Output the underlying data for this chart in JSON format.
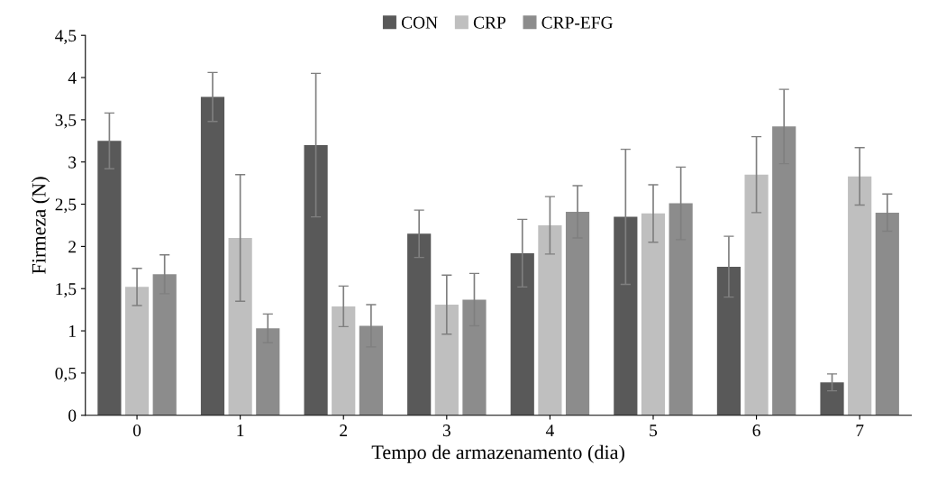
{
  "chart_data": {
    "type": "bar",
    "xlabel": "Tempo de armazenamento (dia)",
    "ylabel": "Firmeza (N)",
    "categories": [
      "0",
      "1",
      "2",
      "3",
      "4",
      "5",
      "6",
      "7"
    ],
    "series": [
      {
        "name": "CON",
        "color": "#595959",
        "values": [
          3.25,
          3.77,
          3.2,
          2.15,
          1.92,
          2.35,
          1.76,
          0.39
        ],
        "errors": [
          0.33,
          0.29,
          0.85,
          0.28,
          0.4,
          0.8,
          0.36,
          0.1
        ]
      },
      {
        "name": "CRP",
        "color": "#bfbfbf",
        "values": [
          1.52,
          2.1,
          1.29,
          1.31,
          2.25,
          2.39,
          2.85,
          2.83
        ],
        "errors": [
          0.22,
          0.75,
          0.24,
          0.35,
          0.34,
          0.34,
          0.45,
          0.34
        ]
      },
      {
        "name": "CRP-EFG",
        "color": "#8c8c8c",
        "values": [
          1.67,
          1.03,
          1.06,
          1.37,
          2.41,
          2.51,
          3.42,
          2.4
        ],
        "errors": [
          0.23,
          0.17,
          0.25,
          0.31,
          0.31,
          0.43,
          0.44,
          0.22
        ]
      }
    ],
    "ylim": [
      0,
      4.5
    ],
    "yticks": [
      0,
      {
        "value": 0.5,
        "label": "0,5"
      },
      1,
      {
        "value": 1.5,
        "label": "1,5"
      },
      2,
      {
        "value": 2.5,
        "label": "2,5"
      },
      3,
      {
        "value": 3.5,
        "label": "3,5"
      },
      4,
      {
        "value": 4.5,
        "label": "4,5"
      }
    ],
    "grid": false,
    "legend": "top"
  }
}
